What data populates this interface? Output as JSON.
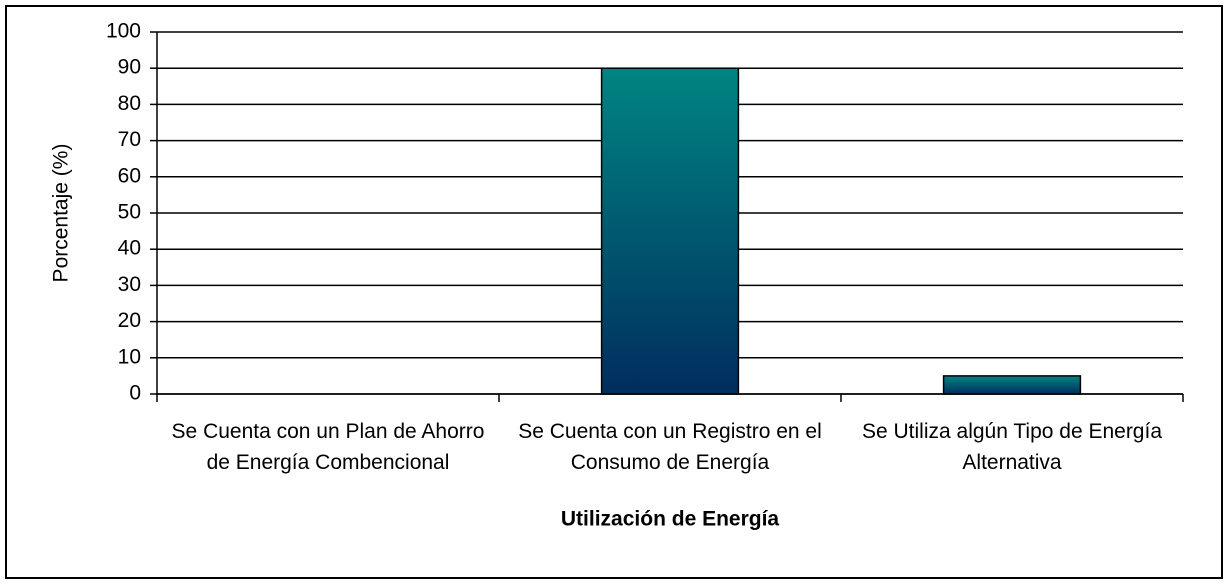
{
  "chart_data": {
    "type": "bar",
    "categories": [
      "Se Cuenta con un Plan de Ahorro de Energía Combencional",
      "Se Cuenta con un Registro en el Consumo de Energía",
      "Se Utiliza algún Tipo de Energía Alternativa"
    ],
    "values": [
      0,
      90,
      5
    ],
    "gradient": [
      "#008582",
      "#002d5e"
    ],
    "ylim": [
      0,
      100
    ],
    "yticks": [
      0,
      10,
      20,
      30,
      40,
      50,
      60,
      70,
      80,
      90,
      100
    ],
    "grid": true,
    "ylabel": "Porcentaje (%)",
    "xlabel": "Utilización de Energía"
  }
}
